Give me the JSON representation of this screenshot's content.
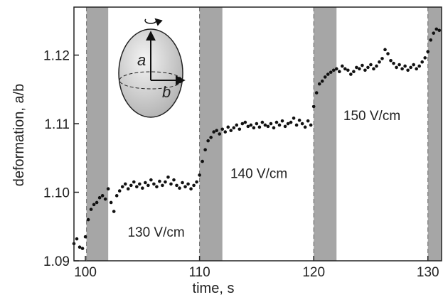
{
  "chart_data": {
    "type": "scatter",
    "xlabel": "time, s",
    "ylabel": "deformation, a/b",
    "xlim": [
      99,
      131.2
    ],
    "ylim": [
      1.09,
      1.127
    ],
    "xticks": [
      100,
      110,
      120,
      130
    ],
    "yticks": [
      1.09,
      {
        "value": 1.1,
        "label": "1.10"
      },
      1.11,
      1.12
    ],
    "shaded_regions": [
      [
        100.1,
        102
      ],
      [
        110,
        112
      ],
      [
        120,
        122
      ],
      [
        130,
        131.2
      ]
    ],
    "shade_color": "#a6a6a6",
    "annotations": [
      {
        "text": "130 V/cm",
        "x": 103.7,
        "y": 1.0935
      },
      {
        "text": "140 V/cm",
        "x": 112.7,
        "y": 1.1021
      },
      {
        "text": "150 V/cm",
        "x": 122.6,
        "y": 1.1105
      }
    ],
    "inset_labels": [
      "a",
      "b"
    ],
    "series": [
      {
        "color": "#111111",
        "x": [
          99,
          99.25,
          99.5,
          99.75,
          100,
          100.25,
          100.5,
          100.75,
          101,
          101.25,
          101.5,
          101.75,
          102,
          102.25,
          102.5,
          102.75,
          103,
          103.25,
          103.5,
          103.75,
          104,
          104.25,
          104.5,
          104.75,
          105,
          105.25,
          105.5,
          105.75,
          106,
          106.25,
          106.5,
          106.75,
          107,
          107.25,
          107.5,
          107.75,
          108,
          108.25,
          108.5,
          108.75,
          109,
          109.25,
          109.5,
          109.75,
          110,
          110.25,
          110.5,
          110.75,
          111,
          111.25,
          111.5,
          111.75,
          112,
          112.25,
          112.5,
          112.75,
          113,
          113.25,
          113.5,
          113.75,
          114,
          114.25,
          114.5,
          114.75,
          115,
          115.25,
          115.5,
          115.75,
          116,
          116.25,
          116.5,
          116.75,
          117,
          117.25,
          117.5,
          117.75,
          118,
          118.25,
          118.5,
          118.75,
          119,
          119.25,
          119.5,
          119.75,
          120,
          120.25,
          120.5,
          120.75,
          121,
          121.25,
          121.5,
          121.75,
          122,
          122.25,
          122.5,
          122.75,
          123,
          123.25,
          123.5,
          123.75,
          124,
          124.25,
          124.5,
          124.75,
          125,
          125.25,
          125.5,
          125.75,
          126,
          126.25,
          126.5,
          126.75,
          127,
          127.25,
          127.5,
          127.75,
          128,
          128.25,
          128.5,
          128.75,
          129,
          129.25,
          129.5,
          129.75,
          130,
          130.25,
          130.5,
          130.75,
          131
        ],
        "values": [
          1.0925,
          1.0932,
          1.092,
          1.0918,
          1.0935,
          1.096,
          1.0975,
          1.0982,
          1.0985,
          1.0992,
          1.0995,
          1.099,
          1.1005,
          1.0985,
          1.0972,
          1.0995,
          1.1002,
          1.1008,
          1.1012,
          1.1005,
          1.101,
          1.1015,
          1.1008,
          1.1012,
          1.1006,
          1.1014,
          1.101,
          1.1018,
          1.1012,
          1.1008,
          1.1016,
          1.101,
          1.1015,
          1.1022,
          1.1012,
          1.1018,
          1.101,
          1.1006,
          1.1014,
          1.1008,
          1.1012,
          1.1005,
          1.101,
          1.1015,
          1.1025,
          1.1045,
          1.1062,
          1.1075,
          1.108,
          1.1088,
          1.109,
          1.1085,
          1.1092,
          1.1088,
          1.1095,
          1.109,
          1.1094,
          1.1098,
          1.1092,
          1.11,
          1.1102,
          1.1096,
          1.1098,
          1.1094,
          1.11,
          1.1095,
          1.1102,
          1.1098,
          1.1096,
          1.11,
          1.1094,
          1.1102,
          1.1098,
          1.1104,
          1.1096,
          1.11,
          1.1102,
          1.1108,
          1.1098,
          1.1105,
          1.11,
          1.1095,
          1.1104,
          1.1098,
          1.1125,
          1.1145,
          1.1158,
          1.1162,
          1.1168,
          1.1172,
          1.1175,
          1.1178,
          1.118,
          1.1176,
          1.1184,
          1.118,
          1.1178,
          1.1172,
          1.1176,
          1.1182,
          1.118,
          1.1185,
          1.1178,
          1.1182,
          1.1186,
          1.118,
          1.1184,
          1.119,
          1.1195,
          1.1208,
          1.1202,
          1.1192,
          1.1188,
          1.1182,
          1.1186,
          1.118,
          1.1184,
          1.1178,
          1.1182,
          1.1186,
          1.118,
          1.1184,
          1.119,
          1.1196,
          1.1205,
          1.1222,
          1.1232,
          1.1238,
          1.1236
        ]
      }
    ]
  }
}
